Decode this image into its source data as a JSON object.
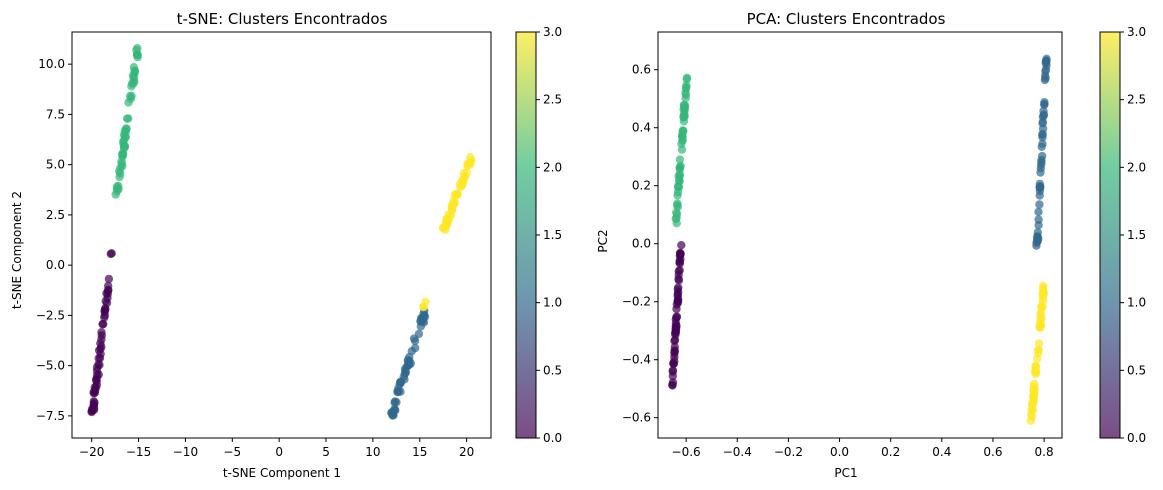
{
  "colormap": {
    "name": "viridis",
    "stops": [
      "#440154",
      "#31688e",
      "#35b779",
      "#fde725"
    ],
    "alpha": 0.7
  },
  "chart_data": [
    {
      "type": "scatter",
      "title": "t-SNE: Clusters Encontrados",
      "xlabel": "t-SNE Component 1",
      "ylabel": "t-SNE Component 2",
      "xlim": [
        -22.1,
        22.6
      ],
      "ylim": [
        -8.6,
        11.6
      ],
      "xticks": [
        -20,
        -15,
        -10,
        -5,
        0,
        5,
        10,
        15,
        20
      ],
      "yticks": [
        -7.5,
        -5.0,
        -2.5,
        0.0,
        2.5,
        5.0,
        7.5,
        10.0
      ],
      "colorbar": {
        "range": [
          0.0,
          3.0
        ],
        "ticks": [
          "0.0",
          "0.5",
          "1.0",
          "1.5",
          "2.0",
          "2.5",
          "3.0"
        ]
      },
      "grid": false,
      "clusters": [
        {
          "value": 0,
          "x_range": [
            -20.0,
            -17.8
          ],
          "y_range": [
            -7.7,
            0.8
          ],
          "n": 55,
          "seed": 11
        },
        {
          "value": 1,
          "x_range": [
            11.9,
            15.6
          ],
          "y_range": [
            -7.6,
            -2.3
          ],
          "n": 55,
          "seed": 23
        },
        {
          "value": 2,
          "x_range": [
            -17.4,
            -15.1
          ],
          "y_range": [
            3.3,
            10.7
          ],
          "n": 55,
          "seed": 37
        },
        {
          "value": 3,
          "x_range": [
            17.6,
            20.6
          ],
          "y_range": [
            1.8,
            5.5
          ],
          "n": 50,
          "seed": 49
        },
        {
          "value": 3,
          "x_range": [
            15.3,
            15.8
          ],
          "y_range": [
            -2.2,
            -1.6
          ],
          "n": 3,
          "seed": 53
        }
      ]
    },
    {
      "type": "scatter",
      "title": "PCA: Clusters Encontrados",
      "xlabel": "PC1",
      "ylabel": "PC2",
      "xlim": [
        -0.71,
        0.87
      ],
      "ylim": [
        -0.67,
        0.73
      ],
      "xticks": [
        -0.6,
        -0.4,
        -0.2,
        0.0,
        0.2,
        0.4,
        0.6,
        0.8
      ],
      "yticks": [
        -0.6,
        -0.4,
        -0.2,
        0.0,
        0.2,
        0.4,
        0.6
      ],
      "colorbar": {
        "range": [
          0.0,
          3.0
        ],
        "ticks": [
          "0.0",
          "0.5",
          "1.0",
          "1.5",
          "2.0",
          "2.5",
          "3.0"
        ]
      },
      "grid": false,
      "clusters": [
        {
          "value": 0,
          "x_range": [
            -0.655,
            -0.62
          ],
          "y_range": [
            -0.5,
            0.0
          ],
          "n": 55,
          "seed": 61
        },
        {
          "value": 1,
          "x_range": [
            0.77,
            0.81
          ],
          "y_range": [
            -0.05,
            0.66
          ],
          "n": 55,
          "seed": 71
        },
        {
          "value": 2,
          "x_range": [
            -0.64,
            -0.595
          ],
          "y_range": [
            0.07,
            0.6
          ],
          "n": 55,
          "seed": 83
        },
        {
          "value": 3,
          "x_range": [
            0.75,
            0.8
          ],
          "y_range": [
            -0.61,
            -0.13
          ],
          "n": 55,
          "seed": 97
        }
      ]
    }
  ]
}
